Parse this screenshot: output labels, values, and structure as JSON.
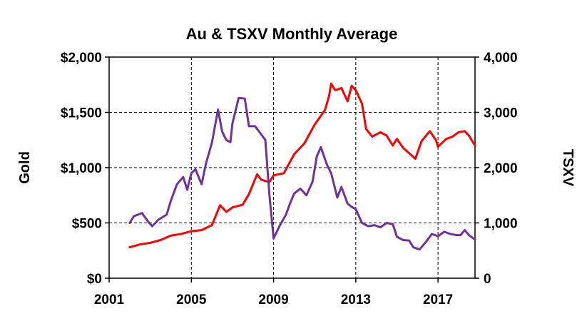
{
  "chart_data": {
    "type": "line",
    "title": "Au  &  TSXV  Monthly  Average",
    "ylabel": "Gold",
    "y2label": "TSXV",
    "xlim": [
      2001,
      2018.8
    ],
    "ylim": [
      0,
      2000
    ],
    "y2lim": [
      0,
      4000
    ],
    "x_ticks": [
      2001,
      2005,
      2009,
      2013,
      2017
    ],
    "x_tick_labels": [
      "2001",
      "2005",
      "2009",
      "2013",
      "2017"
    ],
    "y_ticks": [
      0,
      500,
      1000,
      1500,
      2000
    ],
    "y_tick_labels": [
      "$0",
      "$500",
      "$1,000",
      "$1,500",
      "$2,000"
    ],
    "y2_ticks": [
      0,
      1000,
      2000,
      3000,
      4000
    ],
    "y2_tick_labels": [
      "0",
      "1,000",
      "2,000",
      "3,000",
      "4,000"
    ],
    "grid": "dashed at x and y ticks",
    "series": [
      {
        "axis": "left",
        "color": "#ff0000",
        "points": [
          [
            2002.0,
            280
          ],
          [
            2002.5,
            305
          ],
          [
            2003.0,
            320
          ],
          [
            2003.5,
            345
          ],
          [
            2004.0,
            385
          ],
          [
            2004.5,
            400
          ],
          [
            2005.0,
            425
          ],
          [
            2005.5,
            435
          ],
          [
            2006.0,
            480
          ],
          [
            2006.4,
            660
          ],
          [
            2006.7,
            600
          ],
          [
            2007.0,
            640
          ],
          [
            2007.5,
            665
          ],
          [
            2007.8,
            760
          ],
          [
            2008.2,
            940
          ],
          [
            2008.4,
            890
          ],
          [
            2008.8,
            870
          ],
          [
            2009.0,
            930
          ],
          [
            2009.5,
            950
          ],
          [
            2010.0,
            1120
          ],
          [
            2010.5,
            1220
          ],
          [
            2011.0,
            1390
          ],
          [
            2011.5,
            1520
          ],
          [
            2011.7,
            1650
          ],
          [
            2011.8,
            1760
          ],
          [
            2012.0,
            1700
          ],
          [
            2012.3,
            1720
          ],
          [
            2012.6,
            1600
          ],
          [
            2012.8,
            1740
          ],
          [
            2013.0,
            1700
          ],
          [
            2013.3,
            1580
          ],
          [
            2013.5,
            1350
          ],
          [
            2013.8,
            1280
          ],
          [
            2014.2,
            1320
          ],
          [
            2014.5,
            1290
          ],
          [
            2014.8,
            1200
          ],
          [
            2015.0,
            1260
          ],
          [
            2015.3,
            1180
          ],
          [
            2015.6,
            1130
          ],
          [
            2015.9,
            1080
          ],
          [
            2016.2,
            1240
          ],
          [
            2016.6,
            1330
          ],
          [
            2016.9,
            1250
          ],
          [
            2017.0,
            1190
          ],
          [
            2017.4,
            1260
          ],
          [
            2017.7,
            1280
          ],
          [
            2018.0,
            1320
          ],
          [
            2018.3,
            1330
          ],
          [
            2018.5,
            1290
          ],
          [
            2018.8,
            1200
          ]
        ]
      },
      {
        "axis": "right",
        "color": "#7030a0",
        "points": [
          [
            2002.0,
            1000
          ],
          [
            2002.2,
            1120
          ],
          [
            2002.6,
            1180
          ],
          [
            2002.9,
            1020
          ],
          [
            2003.1,
            940
          ],
          [
            2003.4,
            1060
          ],
          [
            2003.8,
            1150
          ],
          [
            2004.0,
            1400
          ],
          [
            2004.3,
            1700
          ],
          [
            2004.6,
            1830
          ],
          [
            2004.8,
            1600
          ],
          [
            2005.0,
            1900
          ],
          [
            2005.2,
            1970
          ],
          [
            2005.5,
            1700
          ],
          [
            2005.7,
            2060
          ],
          [
            2006.0,
            2450
          ],
          [
            2006.3,
            3050
          ],
          [
            2006.5,
            2650
          ],
          [
            2006.7,
            2500
          ],
          [
            2006.9,
            2460
          ],
          [
            2007.0,
            2800
          ],
          [
            2007.3,
            3260
          ],
          [
            2007.6,
            3250
          ],
          [
            2007.8,
            2750
          ],
          [
            2008.1,
            2750
          ],
          [
            2008.4,
            2600
          ],
          [
            2008.6,
            2500
          ],
          [
            2008.8,
            1500
          ],
          [
            2009.0,
            720
          ],
          [
            2009.3,
            950
          ],
          [
            2009.6,
            1150
          ],
          [
            2009.8,
            1350
          ],
          [
            2010.0,
            1530
          ],
          [
            2010.3,
            1620
          ],
          [
            2010.6,
            1500
          ],
          [
            2010.9,
            1750
          ],
          [
            2011.1,
            2200
          ],
          [
            2011.3,
            2370
          ],
          [
            2011.6,
            2050
          ],
          [
            2011.8,
            1900
          ],
          [
            2012.1,
            1460
          ],
          [
            2012.3,
            1650
          ],
          [
            2012.6,
            1350
          ],
          [
            2012.8,
            1290
          ],
          [
            2013.0,
            1250
          ],
          [
            2013.3,
            1000
          ],
          [
            2013.6,
            940
          ],
          [
            2013.9,
            960
          ],
          [
            2014.2,
            920
          ],
          [
            2014.5,
            1000
          ],
          [
            2014.8,
            980
          ],
          [
            2015.0,
            750
          ],
          [
            2015.3,
            690
          ],
          [
            2015.6,
            680
          ],
          [
            2015.8,
            560
          ],
          [
            2016.1,
            520
          ],
          [
            2016.4,
            650
          ],
          [
            2016.7,
            800
          ],
          [
            2017.0,
            760
          ],
          [
            2017.3,
            840
          ],
          [
            2017.6,
            800
          ],
          [
            2017.9,
            780
          ],
          [
            2018.1,
            780
          ],
          [
            2018.3,
            870
          ],
          [
            2018.5,
            780
          ],
          [
            2018.8,
            700
          ]
        ]
      }
    ]
  }
}
